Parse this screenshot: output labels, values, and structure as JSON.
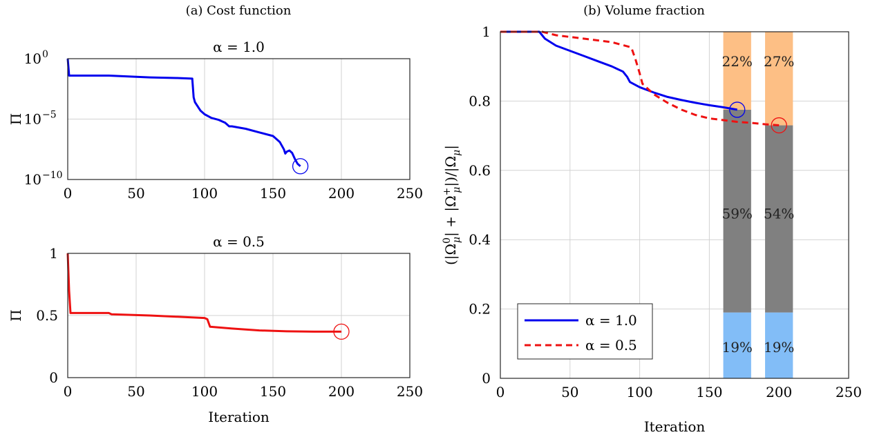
{
  "captions": {
    "left": "(a) Cost function",
    "right": "(b) Volume fraction"
  },
  "colors": {
    "blue": "#0000ee",
    "red": "#ee1111",
    "orange": "#fdbf85",
    "gray": "#808080",
    "lightblue": "#82bdf7",
    "grid": "#d2d2d2"
  },
  "chart_data": [
    {
      "type": "line",
      "title": "α = 1.0",
      "xlabel": "",
      "ylabel": "Π",
      "yscale": "log",
      "xlim": [
        0,
        250
      ],
      "ylim": [
        -10,
        0
      ],
      "xticks": [
        0,
        50,
        100,
        150,
        200,
        250
      ],
      "yticks": [
        {
          "exp": 0,
          "label": "0"
        },
        {
          "exp": -5,
          "label": "−5"
        },
        {
          "exp": -10,
          "label": "−10"
        }
      ],
      "ytick_base": "10",
      "grid": true,
      "series": [
        {
          "color": "#0000ee",
          "points_x": [
            0,
            1,
            30,
            60,
            80,
            91,
            92,
            93,
            97,
            100,
            105,
            110,
            115,
            118,
            120,
            130,
            140,
            150,
            155,
            158,
            159,
            160,
            162,
            164,
            166,
            168,
            170
          ],
          "points_log10y": [
            0.0,
            -1.4,
            -1.4,
            -1.55,
            -1.6,
            -1.65,
            -3.2,
            -3.6,
            -4.3,
            -4.6,
            -4.9,
            -5.05,
            -5.3,
            -5.6,
            -5.6,
            -5.8,
            -6.1,
            -6.4,
            -6.9,
            -7.5,
            -7.85,
            -7.7,
            -7.6,
            -7.8,
            -8.3,
            -8.7,
            -8.9
          ],
          "end_marker": {
            "x": 170,
            "log10y": -8.9
          }
        }
      ]
    },
    {
      "type": "line",
      "title": "α = 0.5",
      "xlabel": "Iteration",
      "ylabel": "Π",
      "xlim": [
        0,
        250
      ],
      "ylim": [
        0,
        1
      ],
      "xticks": [
        0,
        50,
        100,
        150,
        200,
        250
      ],
      "yticks": [
        0,
        0.5,
        1
      ],
      "ytick_labels": [
        "0",
        "0.5",
        "1"
      ],
      "grid": true,
      "series": [
        {
          "color": "#ee1111",
          "points": [
            [
              0,
              1.0
            ],
            [
              1,
              0.7
            ],
            [
              2,
              0.52
            ],
            [
              30,
              0.52
            ],
            [
              32,
              0.51
            ],
            [
              60,
              0.5
            ],
            [
              80,
              0.49
            ],
            [
              100,
              0.48
            ],
            [
              102,
              0.47
            ],
            [
              104,
              0.41
            ],
            [
              120,
              0.395
            ],
            [
              140,
              0.38
            ],
            [
              160,
              0.373
            ],
            [
              180,
              0.37
            ],
            [
              200,
              0.37
            ]
          ],
          "end_marker": [
            200,
            0.37
          ]
        }
      ]
    },
    {
      "type": "line",
      "title": "",
      "xlabel": "Iteration",
      "ylabel": "(|Ω⁰μ| + |Ω⁺μ|)/|Ωμ|",
      "ylabel_parts": {
        "open": "(|Ω",
        "sup0": "0",
        "sub": "μ",
        "mid": "| + |Ω",
        "supPlus": "+",
        "mid2": "|)/|Ω",
        "close": "|"
      },
      "xlim": [
        0,
        250
      ],
      "ylim": [
        0,
        1
      ],
      "xticks": [
        0,
        50,
        100,
        150,
        200,
        250
      ],
      "yticks": [
        0,
        0.2,
        0.4,
        0.6,
        0.8,
        1
      ],
      "ytick_labels": [
        "0",
        "0.2",
        "0.4",
        "0.6",
        "0.8",
        "1"
      ],
      "grid": true,
      "series": [
        {
          "name": "α = 1.0",
          "color": "#0000ee",
          "dash": "solid",
          "points": [
            [
              0,
              1.0
            ],
            [
              28,
              1.0
            ],
            [
              32,
              0.98
            ],
            [
              40,
              0.96
            ],
            [
              50,
              0.945
            ],
            [
              60,
              0.93
            ],
            [
              70,
              0.915
            ],
            [
              80,
              0.9
            ],
            [
              88,
              0.885
            ],
            [
              91,
              0.87
            ],
            [
              93,
              0.855
            ],
            [
              100,
              0.84
            ],
            [
              110,
              0.825
            ],
            [
              120,
              0.812
            ],
            [
              130,
              0.803
            ],
            [
              140,
              0.795
            ],
            [
              150,
              0.788
            ],
            [
              160,
              0.782
            ],
            [
              170,
              0.775
            ]
          ],
          "end_marker": [
            170,
            0.775
          ]
        },
        {
          "name": "α = 0.5",
          "color": "#ee1111",
          "dash": "dashed",
          "points": [
            [
              0,
              1.0
            ],
            [
              30,
              1.0
            ],
            [
              40,
              0.99
            ],
            [
              60,
              0.98
            ],
            [
              80,
              0.97
            ],
            [
              94,
              0.955
            ],
            [
              97,
              0.92
            ],
            [
              100,
              0.88
            ],
            [
              102,
              0.85
            ],
            [
              110,
              0.82
            ],
            [
              120,
              0.795
            ],
            [
              130,
              0.775
            ],
            [
              140,
              0.76
            ],
            [
              150,
              0.75
            ],
            [
              160,
              0.745
            ],
            [
              170,
              0.74
            ],
            [
              180,
              0.737
            ],
            [
              190,
              0.733
            ],
            [
              200,
              0.73
            ]
          ],
          "end_marker": [
            200,
            0.73
          ]
        }
      ],
      "stacked_bars": [
        {
          "x0": 160,
          "x1": 180,
          "segments": [
            {
              "value": 0.19,
              "label": "19%",
              "color": "#82bdf7"
            },
            {
              "value": 0.585,
              "label": "59%",
              "color": "#808080"
            },
            {
              "value": 0.225,
              "label": "22%",
              "color": "#fdbf85"
            }
          ]
        },
        {
          "x0": 190,
          "x1": 210,
          "segments": [
            {
              "value": 0.19,
              "label": "19%",
              "color": "#82bdf7"
            },
            {
              "value": 0.54,
              "label": "54%",
              "color": "#808080"
            },
            {
              "value": 0.27,
              "label": "27%",
              "color": "#fdbf85"
            }
          ]
        }
      ],
      "legend": {
        "placement": "bottom-left",
        "entries": [
          "α = 1.0",
          "α = 0.5"
        ]
      }
    }
  ]
}
